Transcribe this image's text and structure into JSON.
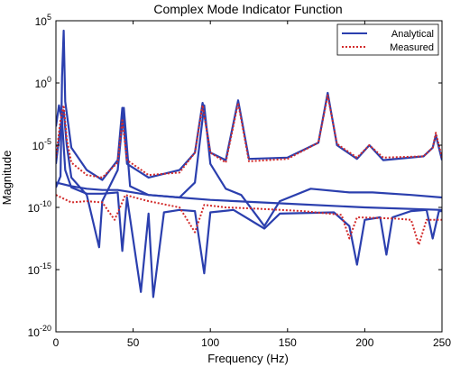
{
  "chart_data": {
    "type": "line",
    "title": "Complex Mode Indicator Function",
    "xlabel": "Frequency (Hz)",
    "ylabel": "Magnitude",
    "xlim": [
      0,
      250
    ],
    "ylim_exponent": [
      -20,
      5
    ],
    "y_scale": "log",
    "x_ticks": [
      0,
      50,
      100,
      150,
      200,
      250
    ],
    "y_tick_exponents": [
      -20,
      -15,
      -10,
      -5,
      0,
      5
    ],
    "y_tick_base": "10",
    "grid": false,
    "legend_position": "top-right",
    "series": [
      {
        "name": "Analytical",
        "color": "#2b3fae",
        "style": "solid",
        "curves": [
          [
            [
              0,
              -8.4
            ],
            [
              3,
              -7.5
            ],
            [
              4,
              0.5
            ],
            [
              5,
              4.2
            ],
            [
              6,
              -1.5
            ],
            [
              10,
              -5.2
            ],
            [
              20,
              -7.0
            ],
            [
              30,
              -7.8
            ],
            [
              40,
              -6.2
            ],
            [
              43,
              -2.0
            ],
            [
              46,
              -6.5
            ],
            [
              60,
              -7.6
            ],
            [
              80,
              -7.0
            ],
            [
              90,
              -5.6
            ],
            [
              95,
              -1.6
            ],
            [
              100,
              -5.6
            ],
            [
              110,
              -6.2
            ],
            [
              118,
              -1.4
            ],
            [
              125,
              -6.1
            ],
            [
              150,
              -6.0
            ],
            [
              170,
              -4.8
            ],
            [
              176,
              -0.8
            ],
            [
              182,
              -5.0
            ],
            [
              195,
              -6.1
            ],
            [
              203,
              -5.0
            ],
            [
              212,
              -6.2
            ],
            [
              238,
              -5.9
            ],
            [
              244,
              -5.2
            ],
            [
              246,
              -4.2
            ],
            [
              250,
              -6.2
            ]
          ],
          [
            [
              0,
              -6.5
            ],
            [
              3,
              -3.5
            ],
            [
              5,
              -2.2
            ],
            [
              7,
              -5.0
            ],
            [
              10,
              -7.6
            ],
            [
              20,
              -9.0
            ],
            [
              28,
              -13.2
            ],
            [
              30,
              -9.5
            ],
            [
              40,
              -7.0
            ],
            [
              44,
              -2.0
            ],
            [
              48,
              -8.3
            ],
            [
              60,
              -9.0
            ],
            [
              80,
              -9.2
            ],
            [
              90,
              -8.0
            ],
            [
              96,
              -1.8
            ],
            [
              100,
              -6.5
            ],
            [
              110,
              -8.5
            ],
            [
              120,
              -9.0
            ],
            [
              135,
              -11.5
            ],
            [
              145,
              -9.5
            ],
            [
              165,
              -8.5
            ],
            [
              190,
              -8.8
            ],
            [
              205,
              -8.8
            ],
            [
              230,
              -9.0
            ],
            [
              250,
              -9.2
            ]
          ],
          [
            [
              0,
              -3.5
            ],
            [
              2,
              -1.8
            ],
            [
              4,
              -3.0
            ],
            [
              6,
              -7.0
            ],
            [
              10,
              -8.4
            ],
            [
              20,
              -8.9
            ],
            [
              30,
              -8.9
            ],
            [
              40,
              -8.8
            ],
            [
              43,
              -13.5
            ],
            [
              46,
              -9.2
            ],
            [
              55,
              -16.8
            ],
            [
              60,
              -10.5
            ],
            [
              63,
              -17.2
            ],
            [
              70,
              -10.4
            ],
            [
              80,
              -10.2
            ],
            [
              90,
              -10.3
            ],
            [
              96,
              -15.3
            ],
            [
              100,
              -10.4
            ],
            [
              115,
              -10.2
            ],
            [
              135,
              -11.7
            ],
            [
              145,
              -10.5
            ],
            [
              180,
              -10.4
            ],
            [
              190,
              -11.5
            ],
            [
              195,
              -14.6
            ],
            [
              200,
              -11.0
            ],
            [
              210,
              -10.8
            ],
            [
              214,
              -13.8
            ],
            [
              218,
              -10.8
            ],
            [
              230,
              -10.3
            ],
            [
              240,
              -10.2
            ],
            [
              244,
              -12.5
            ],
            [
              248,
              -10.3
            ],
            [
              250,
              -10.3
            ]
          ],
          [
            [
              0,
              -8.0
            ],
            [
              10,
              -8.3
            ],
            [
              20,
              -8.5
            ],
            [
              30,
              -8.6
            ],
            [
              40,
              -8.6
            ],
            [
              50,
              -8.8
            ],
            [
              60,
              -9.0
            ],
            [
              80,
              -9.2
            ],
            [
              100,
              -9.4
            ],
            [
              150,
              -9.7
            ],
            [
              200,
              -10.0
            ],
            [
              250,
              -10.2
            ]
          ]
        ]
      },
      {
        "name": "Measured",
        "color": "#d22b2b",
        "style": "dotted",
        "curves": [
          [
            [
              0,
              -6.0
            ],
            [
              3,
              -3.0
            ],
            [
              5,
              -1.8
            ],
            [
              7,
              -4.5
            ],
            [
              10,
              -6.4
            ],
            [
              20,
              -7.4
            ],
            [
              30,
              -7.6
            ],
            [
              40,
              -6.4
            ],
            [
              43,
              -3.0
            ],
            [
              46,
              -6.2
            ],
            [
              60,
              -7.4
            ],
            [
              80,
              -7.2
            ],
            [
              90,
              -5.6
            ],
            [
              95,
              -1.8
            ],
            [
              100,
              -5.6
            ],
            [
              110,
              -6.4
            ],
            [
              118,
              -1.6
            ],
            [
              125,
              -6.3
            ],
            [
              150,
              -6.1
            ],
            [
              170,
              -4.8
            ],
            [
              176,
              -1.0
            ],
            [
              182,
              -4.9
            ],
            [
              195,
              -6.0
            ],
            [
              203,
              -5.0
            ],
            [
              212,
              -6.0
            ],
            [
              238,
              -5.9
            ],
            [
              244,
              -5.2
            ],
            [
              246,
              -4.0
            ],
            [
              250,
              -6.0
            ]
          ],
          [
            [
              0,
              -9.0
            ],
            [
              10,
              -9.6
            ],
            [
              20,
              -9.5
            ],
            [
              30,
              -9.6
            ],
            [
              38,
              -11.0
            ],
            [
              45,
              -9.0
            ],
            [
              60,
              -9.5
            ],
            [
              80,
              -10.0
            ],
            [
              90,
              -12.0
            ],
            [
              96,
              -9.8
            ],
            [
              110,
              -10.0
            ],
            [
              130,
              -10.1
            ],
            [
              160,
              -10.3
            ],
            [
              185,
              -10.6
            ],
            [
              190,
              -12.5
            ],
            [
              195,
              -10.8
            ],
            [
              220,
              -10.9
            ],
            [
              230,
              -11.0
            ],
            [
              235,
              -13.0
            ],
            [
              240,
              -11.0
            ],
            [
              250,
              -11.0
            ]
          ]
        ]
      }
    ]
  }
}
